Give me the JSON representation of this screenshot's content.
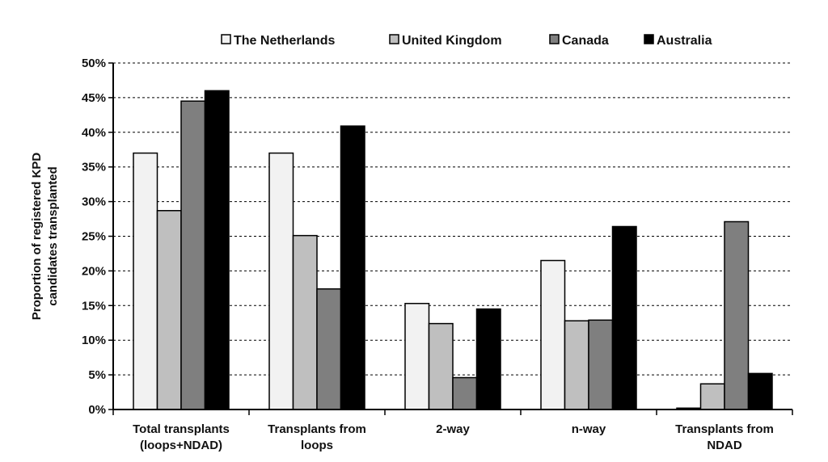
{
  "chart_data": {
    "type": "bar",
    "categories": [
      [
        "Total transplants",
        "(loops+NDAD)"
      ],
      [
        "Transplants from",
        "loops"
      ],
      [
        "2-way"
      ],
      [
        "n-way"
      ],
      [
        "Transplants from",
        "NDAD"
      ]
    ],
    "series": [
      {
        "name": "The Netherlands",
        "color": "#f2f2f2",
        "values": [
          37.0,
          37.0,
          15.3,
          21.5,
          0.2
        ]
      },
      {
        "name": "United Kingdom",
        "color": "#bfbfbf",
        "values": [
          28.7,
          25.1,
          12.4,
          12.8,
          3.7
        ]
      },
      {
        "name": "Canada",
        "color": "#7f7f7f",
        "values": [
          44.5,
          17.4,
          4.6,
          12.9,
          27.1
        ]
      },
      {
        "name": "Australia",
        "color": "#000000",
        "values": [
          46.0,
          40.9,
          14.5,
          26.4,
          5.2
        ]
      }
    ],
    "ylabel": [
      "Proportion of registered KPD",
      "candidates transplanted"
    ],
    "ylim": [
      0,
      50
    ],
    "yticks": [
      "0%",
      "5%",
      "10%",
      "15%",
      "20%",
      "25%",
      "30%",
      "35%",
      "40%",
      "45%",
      "50%"
    ],
    "grid": "horizontal-dashed",
    "legend_position": "top"
  }
}
